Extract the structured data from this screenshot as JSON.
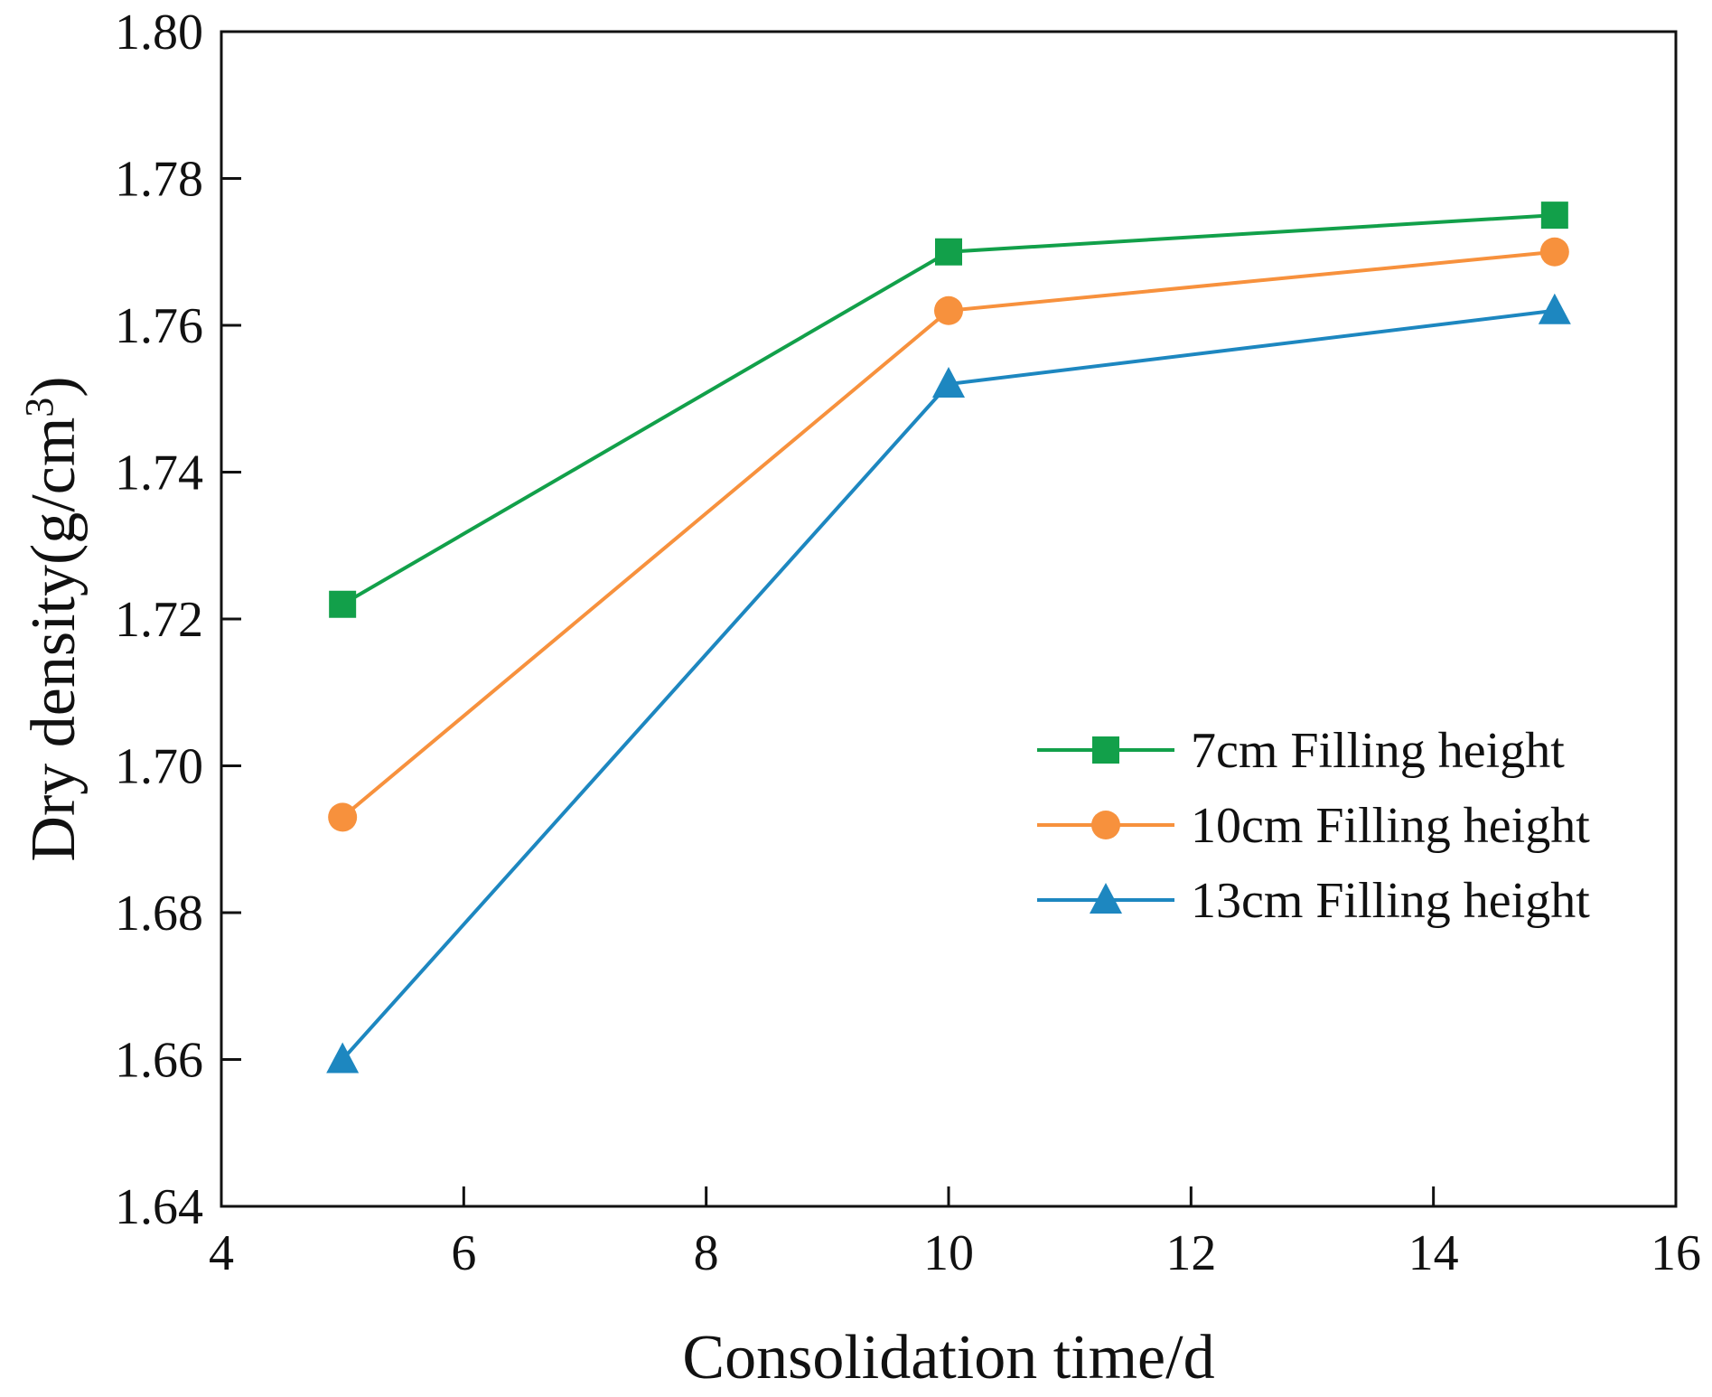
{
  "chart_data": {
    "type": "line",
    "title": "",
    "xlabel": "Consolidation time/d",
    "ylabel_main": "Dry density(g/cm",
    "ylabel_sup": "3",
    "ylabel_close": ")",
    "xlim": [
      4,
      16
    ],
    "ylim": [
      1.64,
      1.8
    ],
    "x_ticks": [
      4,
      6,
      8,
      10,
      12,
      14,
      16
    ],
    "x_tick_labels": [
      "4",
      "6",
      "8",
      "10",
      "12",
      "14",
      "16"
    ],
    "y_ticks": [
      1.64,
      1.66,
      1.68,
      1.7,
      1.72,
      1.74,
      1.76,
      1.78,
      1.8
    ],
    "y_tick_labels": [
      "1.64",
      "1.66",
      "1.68",
      "1.70",
      "1.72",
      "1.74",
      "1.76",
      "1.78",
      "1.80"
    ],
    "grid": false,
    "legend_position": "right",
    "x": [
      5,
      10,
      15
    ],
    "series": [
      {
        "name": "7cm Filling height",
        "values": [
          1.722,
          1.77,
          1.775
        ],
        "color": "#12A04A",
        "marker": "square"
      },
      {
        "name": "10cm Filling height",
        "values": [
          1.693,
          1.762,
          1.77
        ],
        "color": "#F7913D",
        "marker": "circle"
      },
      {
        "name": "13cm Filling height",
        "values": [
          1.66,
          1.752,
          1.762
        ],
        "color": "#1D87C0",
        "marker": "triangle"
      }
    ]
  }
}
